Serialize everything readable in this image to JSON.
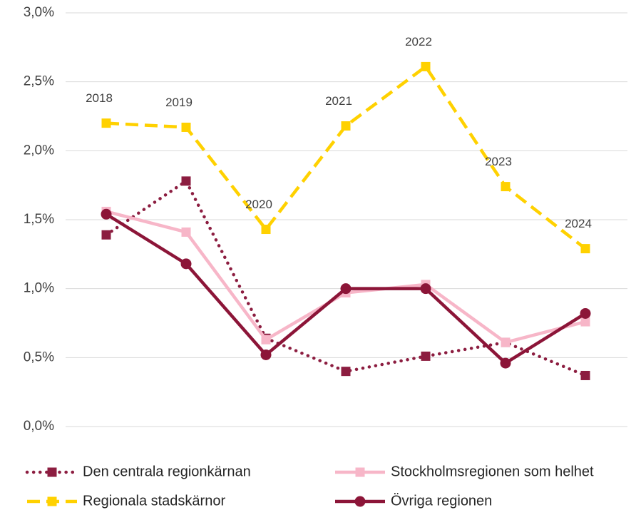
{
  "chart_data": {
    "type": "line",
    "categories": [
      "2018",
      "2019",
      "2020",
      "2021",
      "2022",
      "2023",
      "2024"
    ],
    "series": [
      {
        "name": "Den centrala regionkärnan",
        "color": "#8c1d40",
        "dash": "dotted",
        "marker": "square",
        "values": [
          1.39,
          1.78,
          0.64,
          0.4,
          0.51,
          0.61,
          0.37
        ]
      },
      {
        "name": "Stockholmsregionen som helhet",
        "color": "#f7b6c8",
        "dash": "solid",
        "marker": "square",
        "values": [
          1.56,
          1.41,
          0.63,
          0.97,
          1.03,
          0.61,
          0.76
        ]
      },
      {
        "name": "Regionala stadskärnor",
        "color": "#ffd100",
        "dash": "dashed",
        "marker": "square",
        "category_labels": true,
        "values": [
          2.2,
          2.17,
          1.43,
          2.18,
          2.61,
          1.74,
          1.29
        ]
      },
      {
        "name": "Övriga regionen",
        "color": "#8c1538",
        "dash": "solid",
        "marker": "circle",
        "values": [
          1.54,
          1.18,
          0.52,
          1.0,
          1.0,
          0.46,
          0.82
        ]
      }
    ],
    "ylim": [
      0,
      3
    ],
    "yticks": [
      {
        "value": 0,
        "label": "0,0%"
      },
      {
        "value": 0.5,
        "label": "0,5%"
      },
      {
        "value": 1,
        "label": "1,0%"
      },
      {
        "value": 1.5,
        "label": "1,5%"
      },
      {
        "value": 2,
        "label": "2,0%"
      },
      {
        "value": 2.5,
        "label": "2,5%"
      },
      {
        "value": 3,
        "label": "3,0%"
      }
    ],
    "grid": true
  }
}
